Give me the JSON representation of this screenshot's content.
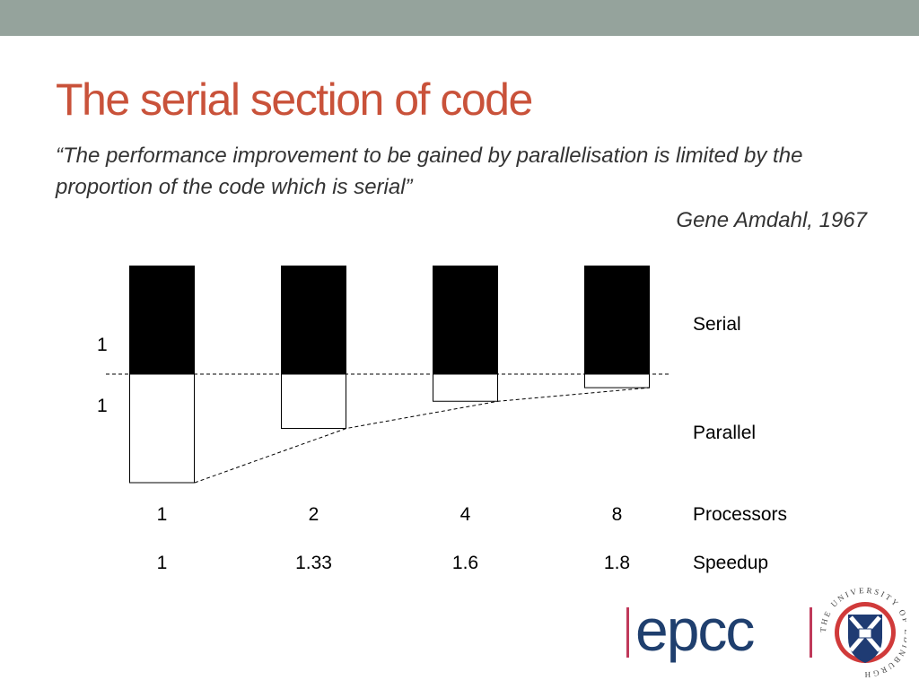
{
  "slide": {
    "title": "The serial section of code",
    "quote": "“The performance improvement to be gained by parallelisation is limited by the proportion of the code which is serial”",
    "attribution": "Gene Amdahl, 1967"
  },
  "diagram": {
    "left_labels": [
      "1",
      "1"
    ],
    "segments": {
      "serial": "Serial",
      "parallel": "Parallel"
    },
    "rows": {
      "processors": "Processors",
      "speedup": "Speedup"
    },
    "columns": [
      {
        "processors": "1",
        "speedup": "1",
        "serial_time": 1,
        "parallel_time": 1
      },
      {
        "processors": "2",
        "speedup": "1.33",
        "serial_time": 1,
        "parallel_time": 0.5
      },
      {
        "processors": "4",
        "speedup": "1.6",
        "serial_time": 1,
        "parallel_time": 0.25
      },
      {
        "processors": "8",
        "speedup": "1.8",
        "serial_time": 1,
        "parallel_time": 0.125
      }
    ],
    "colors": {
      "serial": "#000000",
      "parallel": "#ffffff",
      "outline": "#000000"
    }
  },
  "branding": {
    "epcc_logo_text": "epcc",
    "university_seal_text": "THE UNIVERSITY OF EDINBURGH",
    "colors": {
      "epcc": "#1f3f6e",
      "separator": "#c0395a",
      "seal_red": "#d03a3a",
      "seal_blue": "#1f3b73"
    },
    "icons": [
      "epcc-logo-icon",
      "university-seal-icon"
    ]
  }
}
